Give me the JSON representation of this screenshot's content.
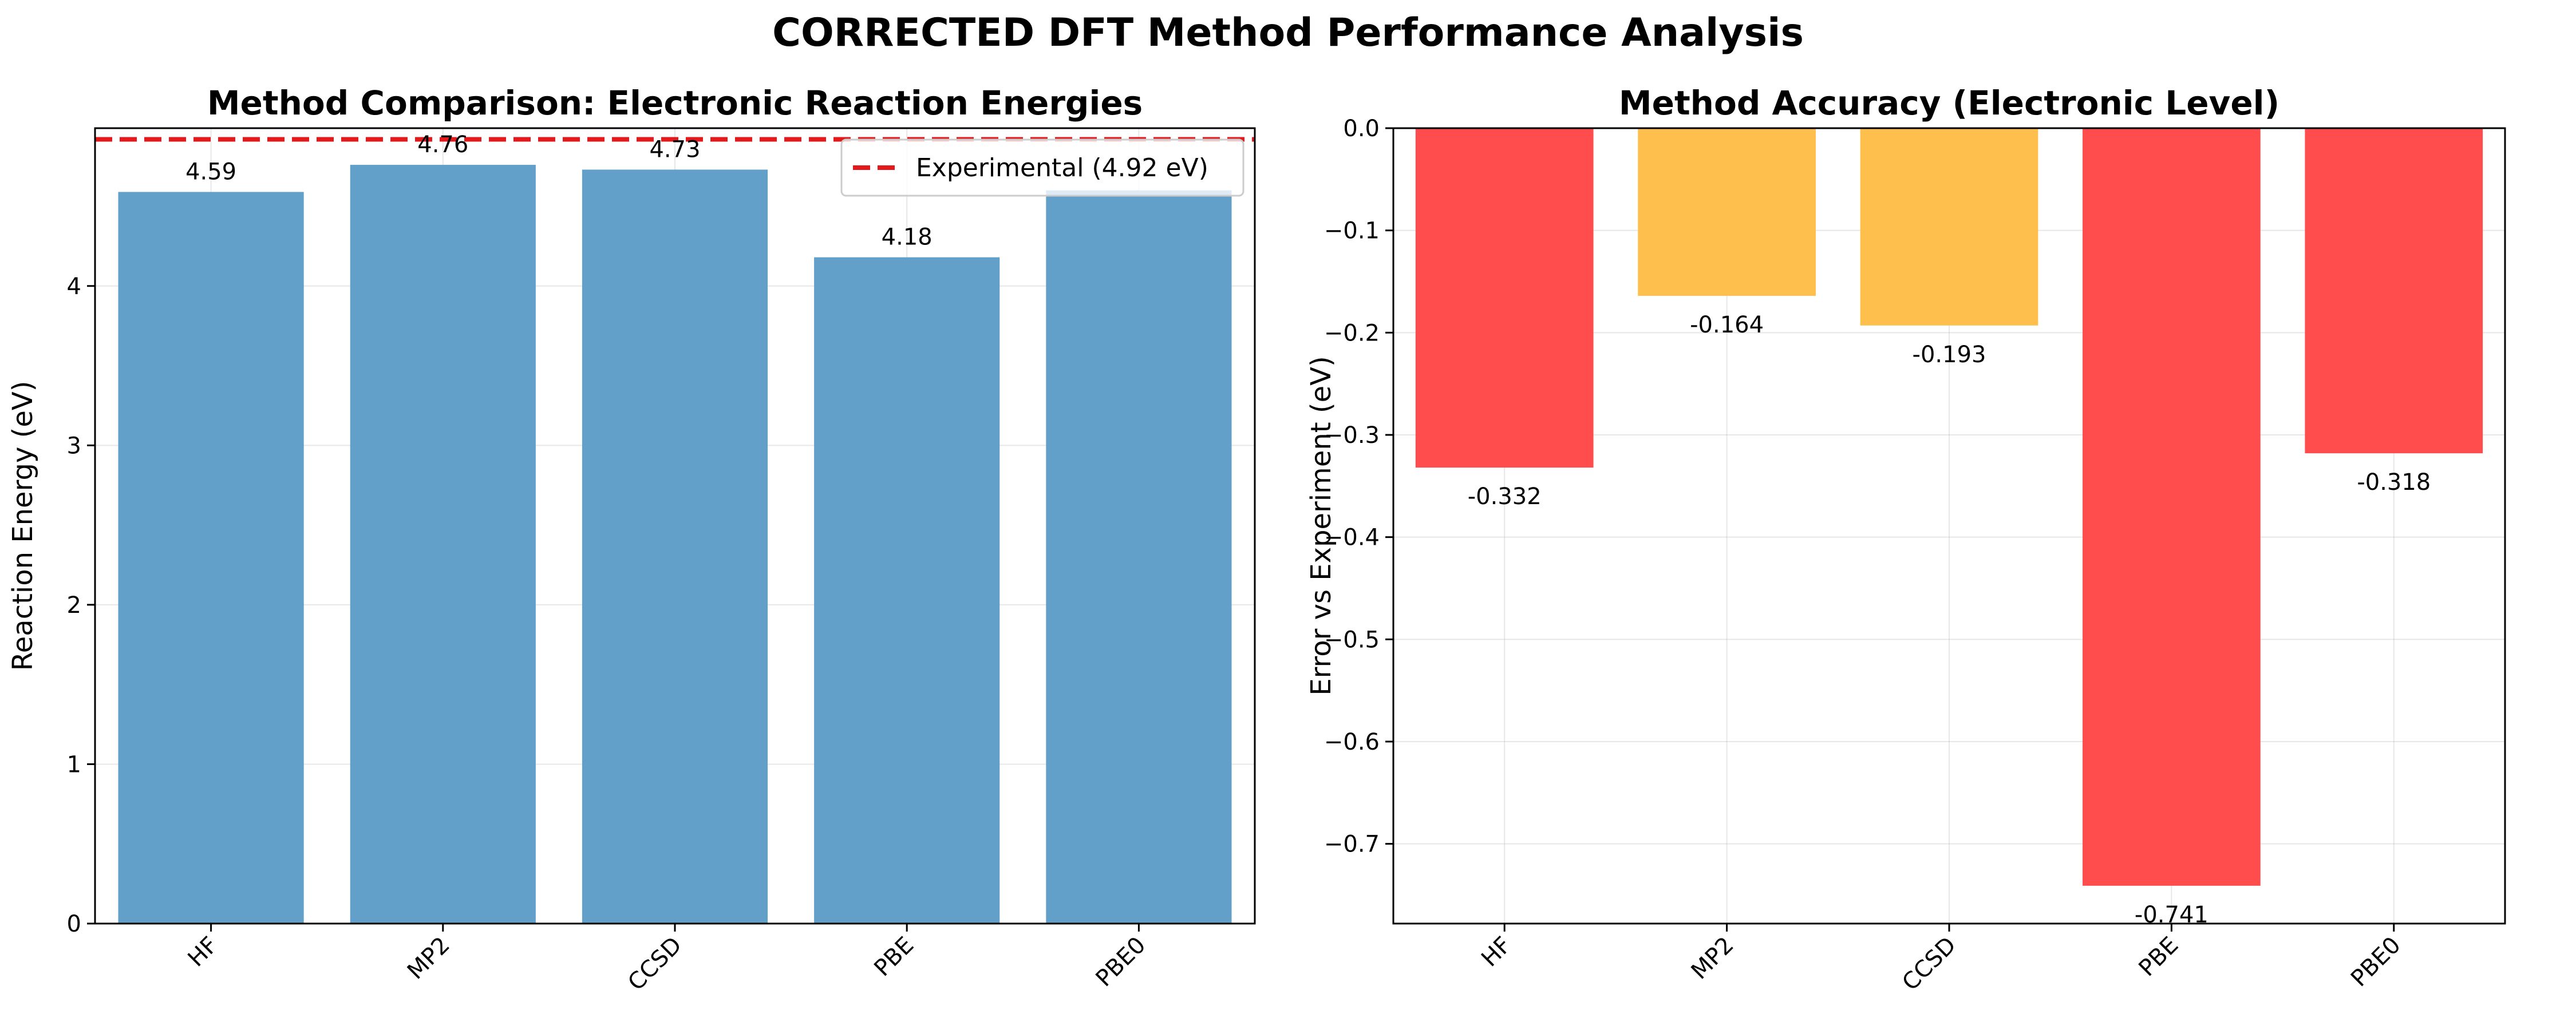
{
  "figure": {
    "suptitle": "CORRECTED DFT Method Performance Analysis"
  },
  "chart_data": [
    {
      "type": "bar",
      "title": "Method Comparison: Electronic Reaction Energies",
      "xlabel": "",
      "ylabel": "Reaction Energy (eV)",
      "categories": [
        "HF",
        "MP2",
        "CCSD",
        "PBE",
        "PBE0"
      ],
      "values": [
        4.59,
        4.76,
        4.73,
        4.18,
        4.6
      ],
      "data_labels": [
        "4.59",
        "4.76",
        "4.73",
        "4.18",
        ""
      ],
      "bar_color": "#62a0ca",
      "ylim": [
        0,
        4.99
      ],
      "yticks": [
        0,
        1,
        2,
        3,
        4
      ],
      "ytick_labels": [
        "0",
        "1",
        "2",
        "3",
        "4"
      ],
      "xtick_rotation": 45,
      "grid": true,
      "reference_line": {
        "value": 4.92,
        "color": "#e31a1c",
        "style": "dashed",
        "label": "Experimental (4.92 eV)"
      },
      "legend": {
        "placement": "top-right",
        "entries": [
          "Experimental (4.92 eV)"
        ]
      }
    },
    {
      "type": "bar",
      "title": "Method Accuracy (Electronic Level)",
      "xlabel": "",
      "ylabel": "Error vs Experiment (eV)",
      "categories": [
        "HF",
        "MP2",
        "CCSD",
        "PBE",
        "PBE0"
      ],
      "values": [
        -0.332,
        -0.164,
        -0.193,
        -0.741,
        -0.318
      ],
      "data_labels": [
        "-0.332",
        "-0.164",
        "-0.193",
        "-0.741",
        "-0.318"
      ],
      "bar_colors": [
        "#ff4d4d",
        "#ffbf4d",
        "#ffbf4d",
        "#ff4d4d",
        "#ff4d4d"
      ],
      "ylim": [
        -0.778,
        0
      ],
      "yticks": [
        0,
        -0.1,
        -0.2,
        -0.3,
        -0.4,
        -0.5,
        -0.6,
        -0.7
      ],
      "ytick_labels": [
        "0.0",
        "−0.1",
        "−0.2",
        "−0.3",
        "−0.4",
        "−0.5",
        "−0.6",
        "−0.7"
      ],
      "xtick_rotation": 45,
      "grid": true
    }
  ]
}
